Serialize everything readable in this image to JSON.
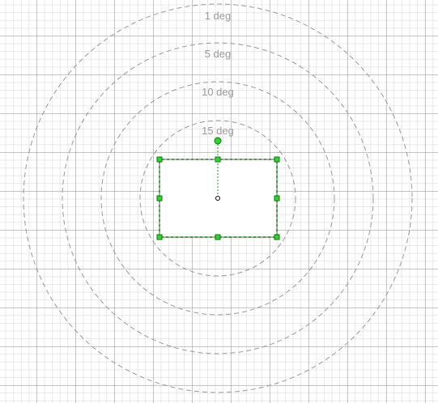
{
  "canvas": {
    "rotation_rings": [
      {
        "label": "1 deg"
      },
      {
        "label": "5 deg"
      },
      {
        "label": "10 deg"
      },
      {
        "label": "15 deg"
      }
    ]
  },
  "selection": {
    "shape": "rectangle",
    "handle_color": "#22dd22",
    "outline_color": "#00aa00"
  }
}
